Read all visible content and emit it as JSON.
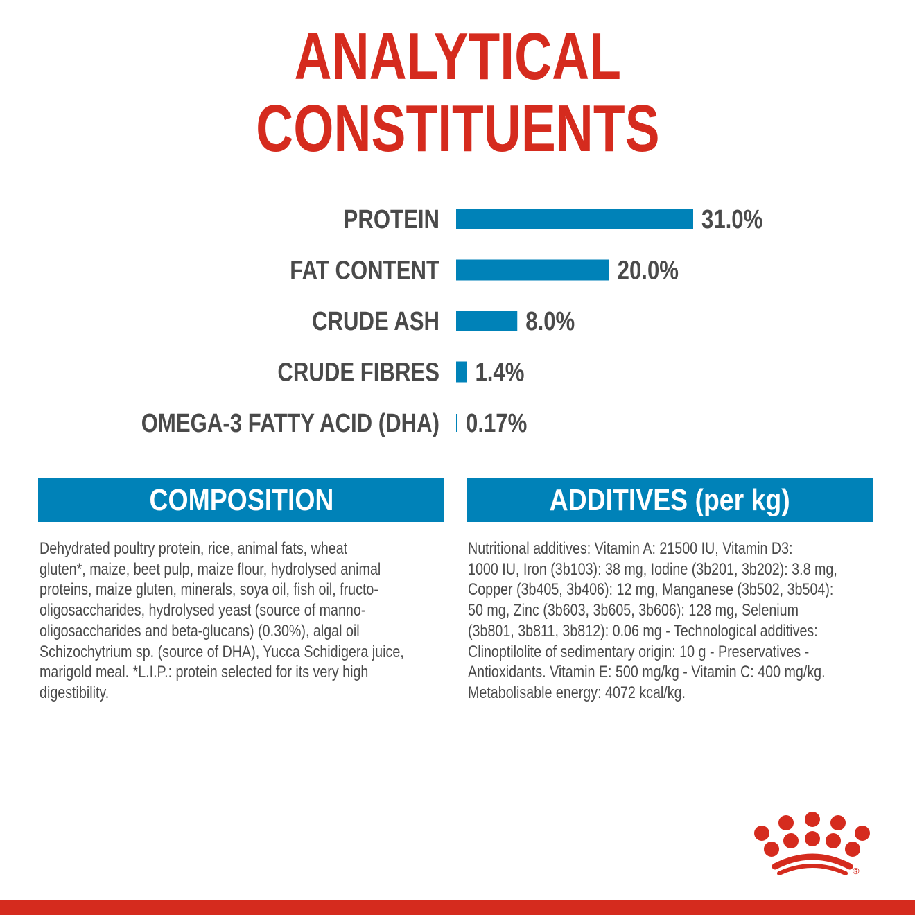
{
  "title_lines": [
    "ANALYTICAL",
    "CONSTITUENTS"
  ],
  "colors": {
    "title": "#d52b1e",
    "bar": "#0082b8",
    "label": "#4a4a4a",
    "brand_red": "#d52b1e"
  },
  "chart_data": {
    "type": "bar",
    "orientation": "horizontal",
    "categories": [
      "PROTEIN",
      "FAT CONTENT",
      "CRUDE ASH",
      "CRUDE FIBRES",
      "OMEGA-3 FATTY ACID (DHA)"
    ],
    "values": [
      31.0,
      20.0,
      8.0,
      1.4,
      0.17
    ],
    "data_labels": [
      "31.0%",
      "20.0%",
      "8.0%",
      "1.4%",
      "0.17%"
    ],
    "unit": "%",
    "grid": false,
    "axes_visible": false
  },
  "composition": {
    "header": "COMPOSITION",
    "lines": [
      "Dehydrated poultry protein, rice, animal fats, wheat",
      "gluten*, maize, beet pulp, maize flour, hydrolysed animal",
      "proteins, maize gluten, minerals, soya oil, fish oil, fructo-",
      "oligosaccharides, hydrolysed yeast (source of manno-",
      "oligosaccharides and beta-glucans) (0.30%), algal oil",
      "Schizochytrium sp. (source of DHA), Yucca Schidigera juice,",
      "marigold meal. *L.I.P.: protein selected for its very high",
      "digestibility."
    ]
  },
  "additives": {
    "header": "ADDITIVES (per kg)",
    "lines": [
      "Nutritional additives: Vitamin A: 21500 IU, Vitamin D3:",
      "1000 IU, Iron (3b103): 38 mg, Iodine (3b201, 3b202): 3.8 mg,",
      "Copper (3b405, 3b406): 12 mg, Manganese (3b502, 3b504):",
      "50 mg, Zinc (3b603, 3b605, 3b606): 128 mg, Selenium",
      "(3b801, 3b811, 3b812): 0.06 mg - Technological additives:",
      "Clinoptilolite of sedimentary origin: 10 g - Preservatives -",
      "Antioxidants. Vitamin E: 500 mg/kg - Vitamin C: 400 mg/kg.",
      "Metabolisable energy: 4072 kcal/kg."
    ]
  },
  "logo": {
    "icon": "crown-logo-icon",
    "mark": "®"
  }
}
